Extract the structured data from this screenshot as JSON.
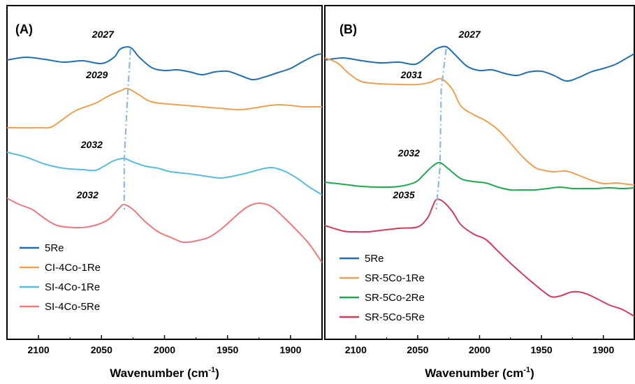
{
  "colors": {
    "5Re": "#1f6eb5",
    "CI-4Co-1Re": "#f0a050",
    "SI-4Co-1Re": "#55bde0",
    "SI-4Co-5Re": "#f07878",
    "SR-5Co-1Re": "#f0a050",
    "SR-5Co-2Re": "#1aab4c",
    "SR-5Co-5Re": "#d63a5a",
    "guide": "#8ab8e0"
  },
  "chart_data": [
    {
      "type": "line",
      "panel_label": "(A)",
      "xlabel_main": "Wavenumber (cm",
      "xlabel_sup": "-1",
      "xlabel_close": ")",
      "x_reversed": true,
      "xlim": [
        2125,
        1875
      ],
      "x_ticks": [
        2100,
        2050,
        2000,
        1950,
        1900
      ],
      "x_tick_labels": [
        "2100",
        "2050",
        "2000",
        "1950",
        "1900"
      ],
      "legend_position": "bottom-left",
      "series": [
        {
          "name": "5Re",
          "color_key": "5Re",
          "points": [
            [
              2125,
              86
            ],
            [
              2110,
              82
            ],
            [
              2095,
              85
            ],
            [
              2080,
              89
            ],
            [
              2065,
              87
            ],
            [
              2050,
              91
            ],
            [
              2040,
              82
            ],
            [
              2035,
              70
            ],
            [
              2027,
              68
            ],
            [
              2020,
              82
            ],
            [
              2010,
              97
            ],
            [
              2000,
              101
            ],
            [
              1990,
              100
            ],
            [
              1980,
              103
            ],
            [
              1970,
              107
            ],
            [
              1960,
              103
            ],
            [
              1950,
              102
            ],
            [
              1940,
              108
            ],
            [
              1930,
              114
            ],
            [
              1920,
              110
            ],
            [
              1910,
              104
            ],
            [
              1900,
              98
            ],
            [
              1890,
              88
            ],
            [
              1880,
              79
            ],
            [
              1875,
              77
            ]
          ]
        },
        {
          "name": "CI-4Co-1Re",
          "color_key": "CI-4Co-1Re",
          "points": [
            [
              2125,
              183
            ],
            [
              2100,
              183
            ],
            [
              2090,
              182
            ],
            [
              2080,
              170
            ],
            [
              2070,
              158
            ],
            [
              2055,
              148
            ],
            [
              2045,
              138
            ],
            [
              2035,
              130
            ],
            [
              2029,
              127
            ],
            [
              2020,
              136
            ],
            [
              2010,
              146
            ],
            [
              1990,
              150
            ],
            [
              1970,
              153
            ],
            [
              1950,
              156
            ],
            [
              1940,
              157
            ],
            [
              1930,
              155
            ],
            [
              1920,
              152
            ],
            [
              1910,
              150
            ],
            [
              1900,
              151
            ],
            [
              1890,
              153
            ],
            [
              1880,
              153
            ],
            [
              1875,
              153
            ]
          ]
        },
        {
          "name": "SI-4Co-1Re",
          "color_key": "SI-4Co-1Re",
          "points": [
            [
              2125,
              218
            ],
            [
              2110,
              225
            ],
            [
              2095,
              235
            ],
            [
              2080,
              241
            ],
            [
              2065,
              243
            ],
            [
              2055,
              244
            ],
            [
              2048,
              238
            ],
            [
              2040,
              230
            ],
            [
              2032,
              227
            ],
            [
              2025,
              232
            ],
            [
              2015,
              238
            ],
            [
              2005,
              241
            ],
            [
              1995,
              246
            ],
            [
              1980,
              249
            ],
            [
              1965,
              253
            ],
            [
              1955,
              255
            ],
            [
              1945,
              252
            ],
            [
              1935,
              248
            ],
            [
              1925,
              243
            ],
            [
              1915,
              240
            ],
            [
              1905,
              245
            ],
            [
              1895,
              255
            ],
            [
              1885,
              268
            ],
            [
              1875,
              279
            ]
          ]
        },
        {
          "name": "SI-4Co-5Re",
          "color_key": "SI-4Co-5Re",
          "points": [
            [
              2125,
              284
            ],
            [
              2115,
              293
            ],
            [
              2105,
              300
            ],
            [
              2095,
              313
            ],
            [
              2085,
              323
            ],
            [
              2070,
              326
            ],
            [
              2058,
              324
            ],
            [
              2045,
              315
            ],
            [
              2036,
              298
            ],
            [
              2032,
              293
            ],
            [
              2025,
              300
            ],
            [
              2015,
              318
            ],
            [
              2005,
              332
            ],
            [
              1995,
              340
            ],
            [
              1985,
              347
            ],
            [
              1975,
              345
            ],
            [
              1965,
              340
            ],
            [
              1955,
              328
            ],
            [
              1945,
              312
            ],
            [
              1935,
              297
            ],
            [
              1925,
              291
            ],
            [
              1915,
              296
            ],
            [
              1905,
              312
            ],
            [
              1895,
              330
            ],
            [
              1885,
              350
            ],
            [
              1875,
              376
            ]
          ]
        }
      ],
      "peak_labels": [
        {
          "text": "2027",
          "x": 2027,
          "y": 60
        },
        {
          "text": "2029",
          "x": 2029,
          "y": 118
        },
        {
          "text": "2032",
          "x": 2032,
          "y": 218
        },
        {
          "text": "2032",
          "x": 2032,
          "y": 290
        }
      ]
    },
    {
      "type": "line",
      "panel_label": "(B)",
      "xlabel_main": "Wavenumber (cm",
      "xlabel_sup": "-1",
      "xlabel_close": ")",
      "x_reversed": true,
      "xlim": [
        2125,
        1875
      ],
      "x_ticks": [
        2100,
        2050,
        2000,
        1950,
        1900
      ],
      "x_tick_labels": [
        "2100",
        "2050",
        "2000",
        "1950",
        "1900"
      ],
      "legend_position": "bottom-left",
      "series": [
        {
          "name": "5Re",
          "color_key": "5Re",
          "points": [
            [
              2125,
              86
            ],
            [
              2110,
              83
            ],
            [
              2095,
              87
            ],
            [
              2080,
              90
            ],
            [
              2065,
              89
            ],
            [
              2052,
              92
            ],
            [
              2042,
              80
            ],
            [
              2035,
              70
            ],
            [
              2027,
              67
            ],
            [
              2020,
              78
            ],
            [
              2010,
              95
            ],
            [
              2000,
              101
            ],
            [
              1990,
              100
            ],
            [
              1980,
              105
            ],
            [
              1970,
              108
            ],
            [
              1960,
              103
            ],
            [
              1950,
              102
            ],
            [
              1940,
              108
            ],
            [
              1930,
              116
            ],
            [
              1920,
              111
            ],
            [
              1910,
              103
            ],
            [
              1900,
              98
            ],
            [
              1890,
              92
            ],
            [
              1880,
              82
            ],
            [
              1875,
              77
            ]
          ]
        },
        {
          "name": "SR-5Co-1Re",
          "color_key": "SR-5Co-1Re",
          "points": [
            [
              2125,
              83
            ],
            [
              2115,
              90
            ],
            [
              2105,
              106
            ],
            [
              2095,
              117
            ],
            [
              2080,
              120
            ],
            [
              2065,
              121
            ],
            [
              2050,
              121
            ],
            [
              2040,
              118
            ],
            [
              2031,
              113
            ],
            [
              2022,
              128
            ],
            [
              2015,
              152
            ],
            [
              2005,
              164
            ],
            [
              1995,
              173
            ],
            [
              1985,
              186
            ],
            [
              1975,
              205
            ],
            [
              1965,
              225
            ],
            [
              1955,
              240
            ],
            [
              1948,
              244
            ],
            [
              1940,
              246
            ],
            [
              1930,
              245
            ],
            [
              1920,
              251
            ],
            [
              1910,
              258
            ],
            [
              1900,
              263
            ],
            [
              1890,
              262
            ],
            [
              1880,
              264
            ],
            [
              1875,
              265
            ]
          ]
        },
        {
          "name": "SR-5Co-2Re",
          "color_key": "SR-5Co-2Re",
          "points": [
            [
              2125,
              261
            ],
            [
              2110,
              264
            ],
            [
              2095,
              267
            ],
            [
              2080,
              268
            ],
            [
              2065,
              267
            ],
            [
              2052,
              261
            ],
            [
              2045,
              250
            ],
            [
              2038,
              238
            ],
            [
              2032,
              233
            ],
            [
              2025,
              242
            ],
            [
              2015,
              256
            ],
            [
              2005,
              260
            ],
            [
              1995,
              262
            ],
            [
              1985,
              268
            ],
            [
              1975,
              272
            ],
            [
              1965,
              272
            ],
            [
              1955,
              272
            ],
            [
              1945,
              270
            ],
            [
              1935,
              268
            ],
            [
              1925,
              270
            ],
            [
              1915,
              270
            ],
            [
              1905,
              270
            ],
            [
              1895,
              269
            ],
            [
              1885,
              270
            ],
            [
              1875,
              269
            ]
          ]
        },
        {
          "name": "SR-5Co-5Re",
          "color_key": "SR-5Co-5Re",
          "points": [
            [
              2125,
              323
            ],
            [
              2110,
              331
            ],
            [
              2100,
              332
            ],
            [
              2090,
              332
            ],
            [
              2080,
              330
            ],
            [
              2065,
              327
            ],
            [
              2050,
              325
            ],
            [
              2042,
              312
            ],
            [
              2038,
              296
            ],
            [
              2035,
              286
            ],
            [
              2030,
              288
            ],
            [
              2022,
              303
            ],
            [
              2015,
              322
            ],
            [
              2005,
              335
            ],
            [
              1995,
              343
            ],
            [
              1985,
              360
            ],
            [
              1975,
              377
            ],
            [
              1965,
              393
            ],
            [
              1955,
              408
            ],
            [
              1948,
              418
            ],
            [
              1942,
              425
            ],
            [
              1935,
              424
            ],
            [
              1925,
              418
            ],
            [
              1915,
              420
            ],
            [
              1905,
              428
            ],
            [
              1895,
              437
            ],
            [
              1885,
              443
            ],
            [
              1875,
              453
            ]
          ]
        }
      ],
      "peak_labels": [
        {
          "text": "2027",
          "x": 2027,
          "y": 60
        },
        {
          "text": "2031",
          "x": 2031,
          "y": 118
        },
        {
          "text": "2032",
          "x": 2032,
          "y": 230
        },
        {
          "text": "2035",
          "x": 2035,
          "y": 290
        }
      ]
    }
  ]
}
